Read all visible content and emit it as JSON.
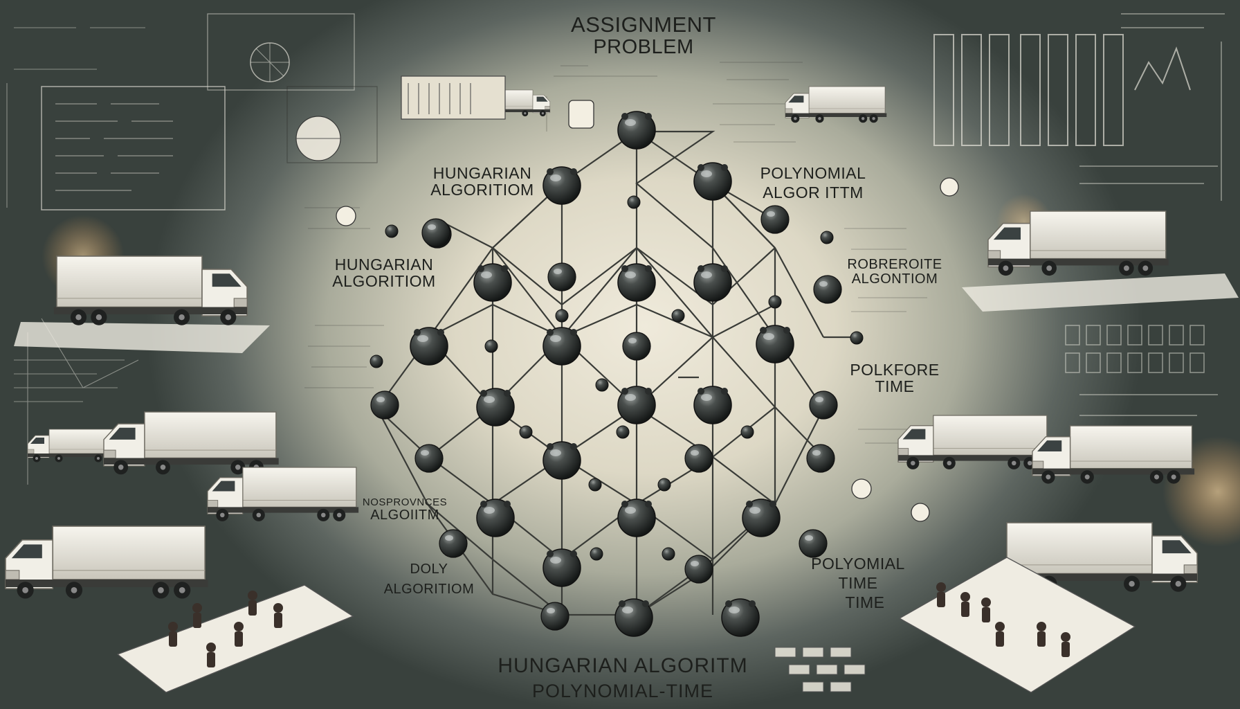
{
  "title": {
    "line1": "ASSIGNMENT",
    "line2": "PROBLEM"
  },
  "labels": [
    {
      "id": "hungarian-1",
      "line1": "HUNGARIAN",
      "line2": "ALGORITIOM"
    },
    {
      "id": "hungarian-2",
      "line1": "HUNGARIAN",
      "line2": "ALGORITIOM"
    },
    {
      "id": "polynomial-algoritm",
      "line1": "POLYNOMIAL",
      "line2": "ALGOR ITTM"
    },
    {
      "id": "robreroite",
      "line1": "ROBREROITE",
      "line2": "ALGONTIOM"
    },
    {
      "id": "polkfore",
      "line1": "POLKFORE",
      "line2": "TIME"
    },
    {
      "id": "nosprovnces",
      "line1": "NOSPROVNCES",
      "line2": "ALGOIITM"
    },
    {
      "id": "doly",
      "line1": "DOLY",
      "line2": "ALGORITIOM"
    },
    {
      "id": "polyomial-time",
      "line1": "POLYOMIAL",
      "line2": "TIME",
      "line3": "TIME"
    }
  ],
  "bottom": {
    "line1": "HUNGARIAN ALGORITM",
    "line2": "POLYNOMIAL-TIME"
  },
  "colors": {
    "node": "#2f3332",
    "edge": "#3a3c38",
    "paper": "#e9e4d4",
    "chalk": "#f2f0e6",
    "board": "#3e4642"
  }
}
